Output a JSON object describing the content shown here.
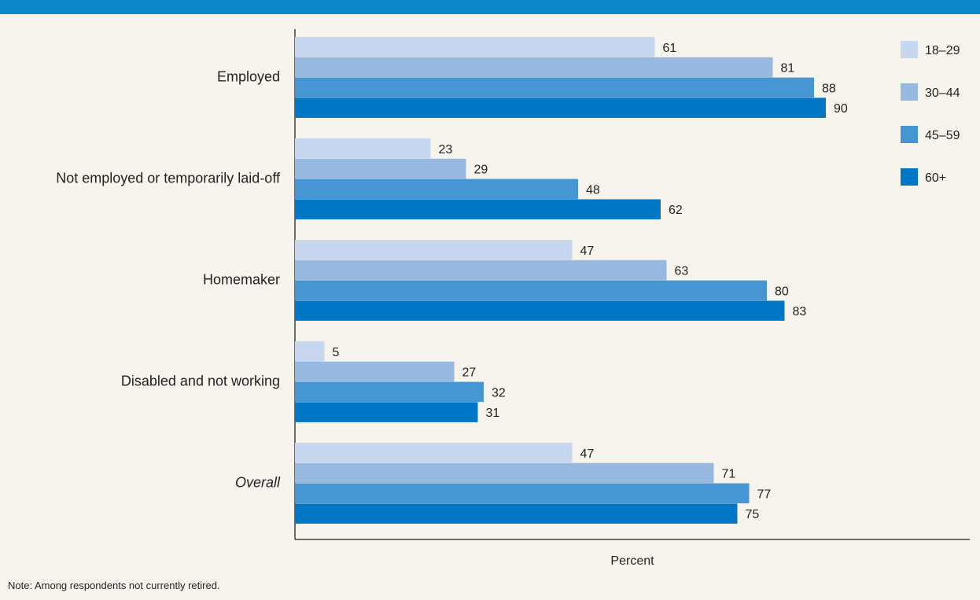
{
  "colors": {
    "header": "#0a87c9",
    "background": "#f7f4ee",
    "series": [
      "#c6d7ef",
      "#97b9e0",
      "#4596d2",
      "#0077c5"
    ]
  },
  "note": "Note: Among respondents not currently retired.",
  "chart_data": {
    "type": "bar",
    "orientation": "horizontal",
    "categories": [
      "Employed",
      "Not employed or temporarily laid-off",
      "Homemaker",
      "Disabled and not working",
      "Overall"
    ],
    "italic_categories": [
      "Overall"
    ],
    "series": [
      {
        "name": "18–29",
        "values": [
          61,
          23,
          47,
          5,
          47
        ]
      },
      {
        "name": "30–44",
        "values": [
          81,
          29,
          63,
          27,
          71
        ]
      },
      {
        "name": "45–59",
        "values": [
          88,
          48,
          80,
          32,
          77
        ]
      },
      {
        "name": "60+",
        "values": [
          90,
          62,
          83,
          31,
          75
        ]
      }
    ],
    "xlabel": "Percent",
    "xlim": [
      0,
      100
    ],
    "grid": false,
    "legend": "top-right",
    "data_labels": true
  }
}
